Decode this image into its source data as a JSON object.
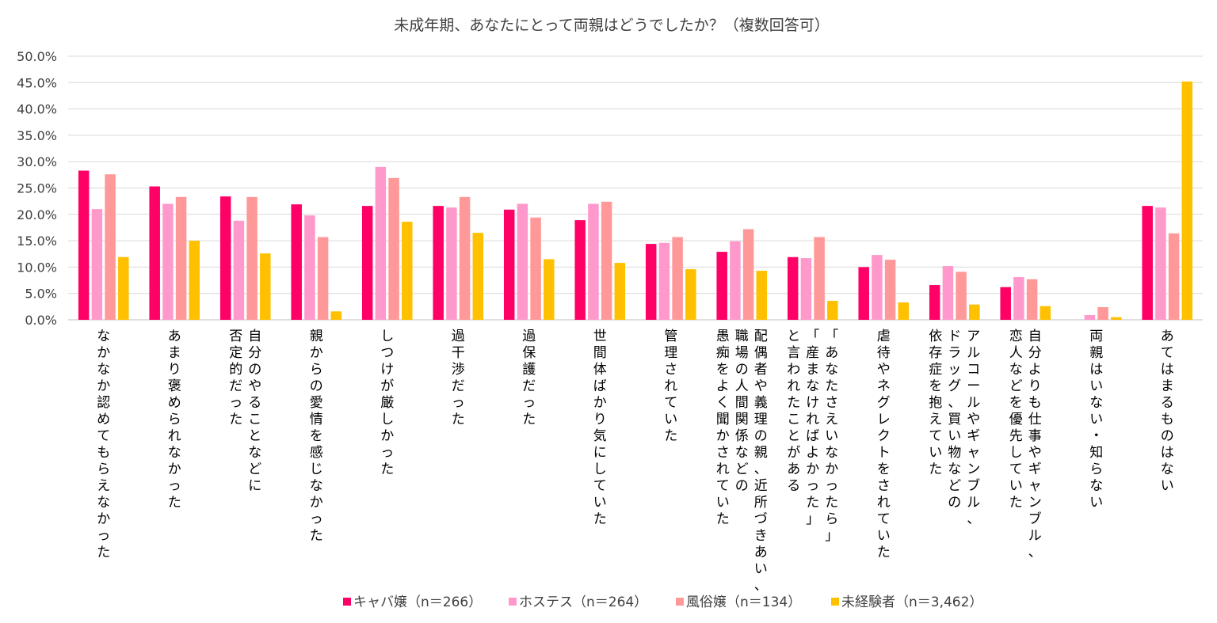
{
  "chart_data": {
    "type": "bar",
    "title": "未成年期、あなたにとって両親はどうでしたか？（複数回答可）",
    "ylim": [
      0,
      50
    ],
    "yticks": [
      "0.0%",
      "5.0%",
      "10.0%",
      "15.0%",
      "20.0%",
      "25.0%",
      "30.0%",
      "35.0%",
      "40.0%",
      "45.0%",
      "50.0%"
    ],
    "grid": true,
    "legend_position": "bottom",
    "categories": [
      [
        "なかなか認めてもらえなかった"
      ],
      [
        "あまり褒められなかった"
      ],
      [
        "自分のやることなどに",
        "否定的だった"
      ],
      [
        "親からの愛情を感じなかった"
      ],
      [
        "しつけが厳しかった"
      ],
      [
        "過干渉だった"
      ],
      [
        "過保護だった"
      ],
      [
        "世間体ばかり気にしていた"
      ],
      [
        "管理されていた"
      ],
      [
        "配偶者や義理の親、近所づきあい、",
        "職場の人間関係などの",
        "愚痴をよく聞かされていた"
      ],
      [
        "「あなたさえいなかったら」",
        "「産まなければよかった」",
        "と言われたことがある"
      ],
      [
        "虐待やネグレクトをされていた"
      ],
      [
        "アルコールやギャンブル、",
        "ドラッグ、買い物などの",
        "依存症を抱えていた"
      ],
      [
        "自分よりも仕事やギャンブル、",
        "恋人などを優先していた"
      ],
      [
        "両親はいない・知らない"
      ],
      [
        "あてはまるものはない"
      ]
    ],
    "series": [
      {
        "name": "キャバ嬢（n＝266）",
        "color": "#ff0066",
        "values": [
          28.3,
          25.3,
          23.4,
          21.9,
          21.6,
          21.6,
          20.9,
          18.9,
          14.4,
          12.9,
          11.9,
          10.0,
          6.6,
          6.2,
          0.0,
          21.6
        ]
      },
      {
        "name": "ホステス（n＝264）",
        "color": "#ff99cc",
        "values": [
          21.0,
          22.0,
          18.8,
          19.8,
          29.0,
          21.3,
          22.0,
          22.0,
          14.6,
          14.9,
          11.7,
          12.3,
          10.2,
          8.1,
          0.9,
          21.3
        ]
      },
      {
        "name": "風俗嬢（n＝134）",
        "color": "#ff9999",
        "values": [
          27.6,
          23.3,
          23.3,
          15.7,
          26.9,
          23.3,
          19.4,
          22.4,
          15.7,
          17.2,
          15.7,
          11.4,
          9.1,
          7.7,
          2.4,
          16.4
        ]
      },
      {
        "name": "未経験者（n＝3,462）",
        "color": "#ffc000",
        "values": [
          11.9,
          15.0,
          12.6,
          1.6,
          18.6,
          16.5,
          11.5,
          10.8,
          9.6,
          9.3,
          3.6,
          3.3,
          2.9,
          2.6,
          0.5,
          45.2
        ]
      }
    ]
  }
}
